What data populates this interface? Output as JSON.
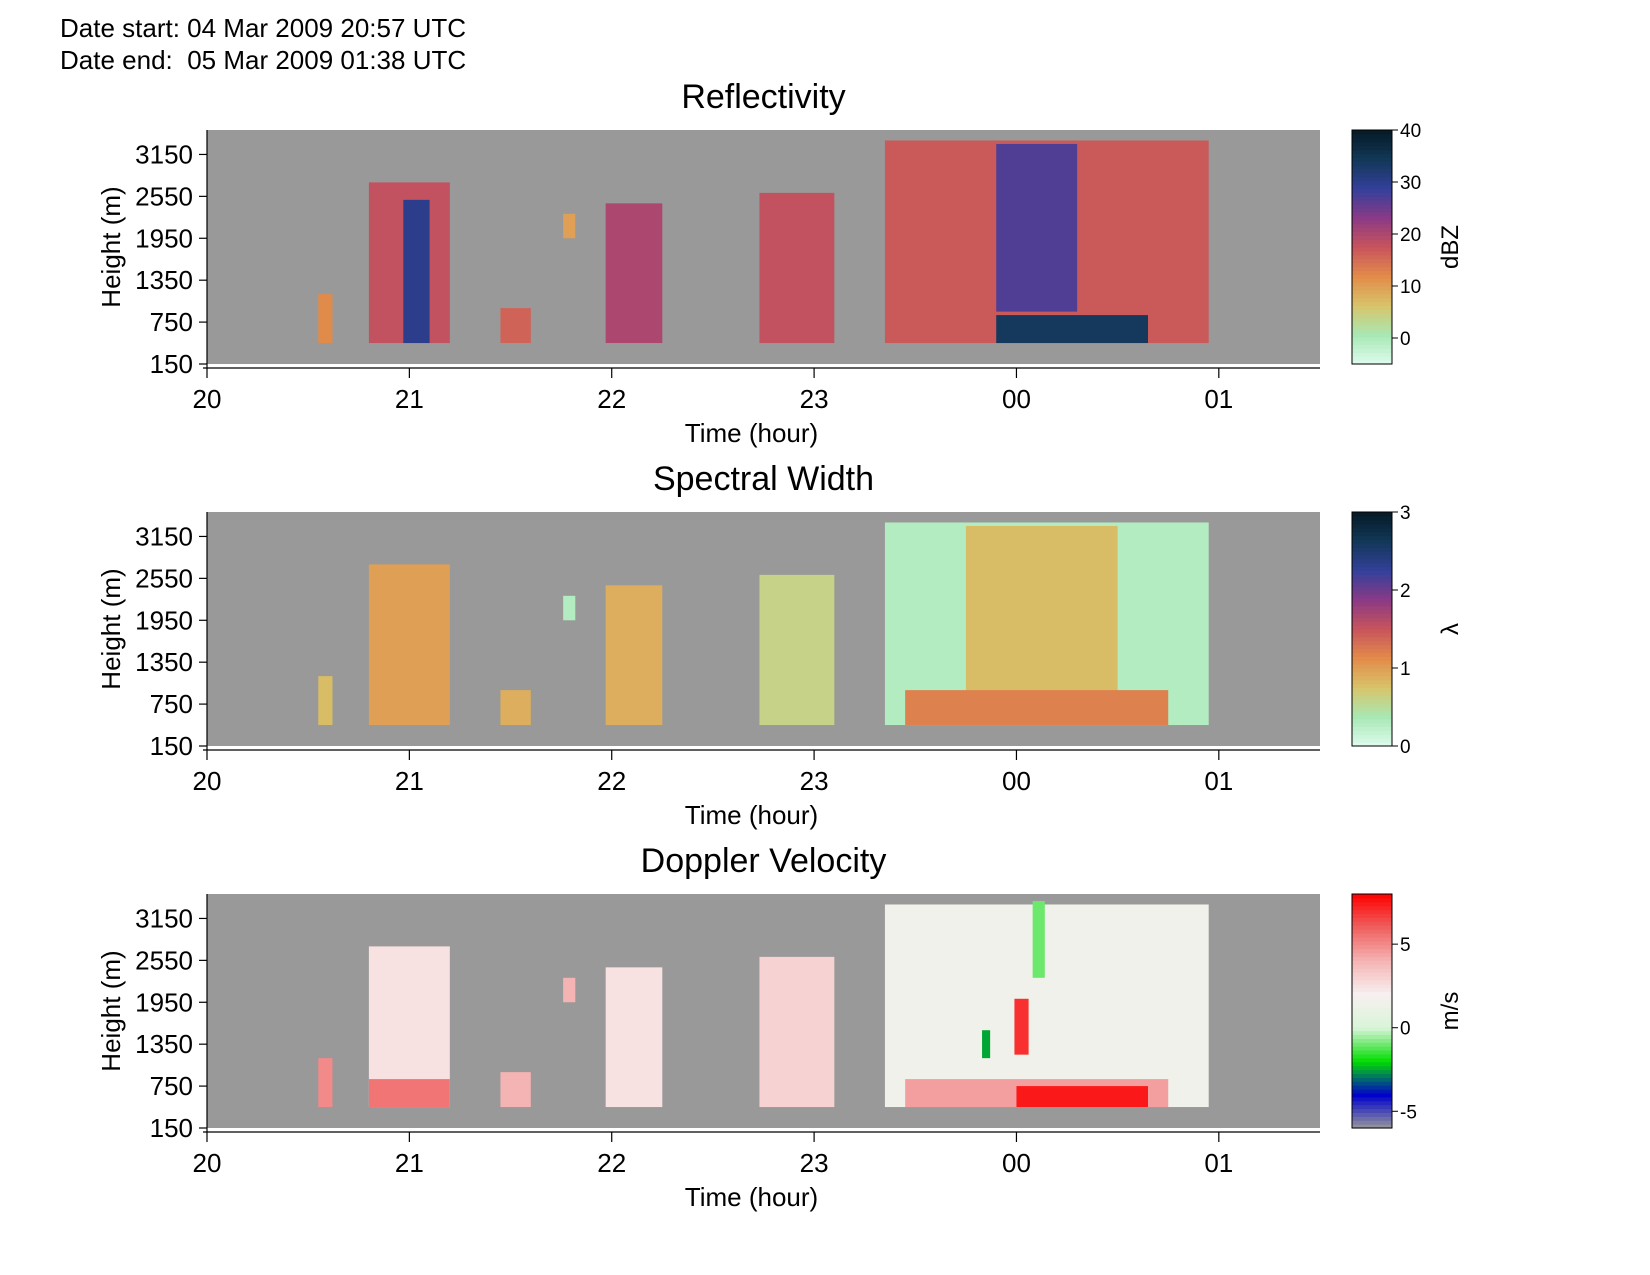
{
  "header": {
    "date_start": "Date start: 04 Mar 2009 20:57 UTC",
    "date_end": "Date end:  05 Mar 2009 01:38 UTC"
  },
  "chart_data": [
    {
      "type": "heatmap",
      "title": "Reflectivity",
      "xlabel": "Time (hour)",
      "ylabel": "Height (m)",
      "x_ticks": [
        "20",
        "21",
        "22",
        "23",
        "00",
        "01"
      ],
      "y_ticks": [
        "150",
        "750",
        "1350",
        "1950",
        "2550",
        "3150"
      ],
      "xlim": [
        20,
        25.5
      ],
      "ylim": [
        150,
        3500
      ],
      "colorbar": {
        "label": "dBZ",
        "ticks": [
          "0",
          "10",
          "20",
          "30",
          "40"
        ],
        "range": [
          -5,
          40
        ],
        "colors": [
          "#dffbef",
          "#a8e8b4",
          "#d8c46a",
          "#e28c4a",
          "#c8545c",
          "#8a3a86",
          "#34409a",
          "#123858",
          "#061a26"
        ]
      },
      "background": "#999999",
      "cells": [
        {
          "t0": 20.55,
          "t1": 20.62,
          "h0": 450,
          "h1": 1150,
          "value": 12
        },
        {
          "t0": 20.8,
          "t1": 21.2,
          "h0": 450,
          "h1": 2750,
          "value": 18
        },
        {
          "t0": 20.97,
          "t1": 21.1,
          "h0": 450,
          "h1": 2500,
          "value": 30
        },
        {
          "t0": 21.45,
          "t1": 21.6,
          "h0": 450,
          "h1": 950,
          "value": 16
        },
        {
          "t0": 21.76,
          "t1": 21.82,
          "h0": 1950,
          "h1": 2300,
          "value": 10
        },
        {
          "t0": 21.97,
          "t1": 22.25,
          "h0": 450,
          "h1": 2450,
          "value": 20
        },
        {
          "t0": 22.73,
          "t1": 23.1,
          "h0": 450,
          "h1": 2600,
          "value": 18
        },
        {
          "t0": 23.35,
          "t1": 24.95,
          "h0": 450,
          "h1": 3350,
          "value": 17
        },
        {
          "t0": 23.9,
          "t1": 24.3,
          "h0": 900,
          "h1": 3300,
          "value": 27
        },
        {
          "t0": 23.9,
          "t1": 24.65,
          "h0": 450,
          "h1": 850,
          "value": 34
        }
      ]
    },
    {
      "type": "heatmap",
      "title": "Spectral Width",
      "xlabel": "Time (hour)",
      "ylabel": "Height (m)",
      "x_ticks": [
        "20",
        "21",
        "22",
        "23",
        "00",
        "01"
      ],
      "y_ticks": [
        "150",
        "750",
        "1350",
        "1950",
        "2550",
        "3150"
      ],
      "xlim": [
        20,
        25.5
      ],
      "ylim": [
        150,
        3500
      ],
      "colorbar": {
        "label": "λ",
        "ticks": [
          "0",
          "1",
          "2",
          "3"
        ],
        "range": [
          0,
          3
        ],
        "colors": [
          "#dffbef",
          "#a8e8b4",
          "#d8c46a",
          "#e28c4a",
          "#c8545c",
          "#8a3a86",
          "#34409a",
          "#123858",
          "#061a26"
        ]
      },
      "background": "#999999",
      "cells": [
        {
          "t0": 20.55,
          "t1": 20.62,
          "h0": 450,
          "h1": 1150,
          "value": 0.8
        },
        {
          "t0": 20.8,
          "t1": 21.2,
          "h0": 450,
          "h1": 2750,
          "value": 1.0
        },
        {
          "t0": 21.45,
          "t1": 21.6,
          "h0": 450,
          "h1": 950,
          "value": 0.9
        },
        {
          "t0": 21.76,
          "t1": 21.82,
          "h0": 1950,
          "h1": 2300,
          "value": 0.3
        },
        {
          "t0": 21.97,
          "t1": 22.25,
          "h0": 450,
          "h1": 2450,
          "value": 0.9
        },
        {
          "t0": 22.73,
          "t1": 23.1,
          "h0": 450,
          "h1": 2600,
          "value": 0.6
        },
        {
          "t0": 23.35,
          "t1": 24.95,
          "h0": 450,
          "h1": 3350,
          "value": 0.3
        },
        {
          "t0": 23.75,
          "t1": 24.5,
          "h0": 450,
          "h1": 3300,
          "value": 0.8
        },
        {
          "t0": 23.45,
          "t1": 24.75,
          "h0": 450,
          "h1": 950,
          "value": 1.2
        }
      ]
    },
    {
      "type": "heatmap",
      "title": "Doppler Velocity",
      "xlabel": "Time (hour)",
      "ylabel": "Height (m)",
      "x_ticks": [
        "20",
        "21",
        "22",
        "23",
        "00",
        "01"
      ],
      "y_ticks": [
        "150",
        "750",
        "1350",
        "1950",
        "2550",
        "3150"
      ],
      "xlim": [
        20,
        25.5
      ],
      "ylim": [
        150,
        3500
      ],
      "colorbar": {
        "label": "m/s",
        "ticks": [
          "-5",
          "0",
          "5"
        ],
        "range": [
          -6,
          8
        ],
        "colors": [
          "#999999",
          "#0000cc",
          "#00dd00",
          "#d8f5d8",
          "#f8f0f0",
          "#f4b4b4",
          "#f06060",
          "#ff0000"
        ]
      },
      "background": "#999999",
      "cells": [
        {
          "t0": 20.55,
          "t1": 20.62,
          "h0": 450,
          "h1": 1150,
          "value": 5
        },
        {
          "t0": 20.8,
          "t1": 21.2,
          "h0": 450,
          "h1": 2750,
          "value": 2.5
        },
        {
          "t0": 20.8,
          "t1": 21.2,
          "h0": 450,
          "h1": 850,
          "value": 5.5
        },
        {
          "t0": 21.45,
          "t1": 21.6,
          "h0": 450,
          "h1": 950,
          "value": 4
        },
        {
          "t0": 21.76,
          "t1": 21.82,
          "h0": 1950,
          "h1": 2300,
          "value": 4
        },
        {
          "t0": 21.97,
          "t1": 22.25,
          "h0": 450,
          "h1": 2450,
          "value": 2.5
        },
        {
          "t0": 22.73,
          "t1": 23.1,
          "h0": 450,
          "h1": 2600,
          "value": 3
        },
        {
          "t0": 23.35,
          "t1": 24.95,
          "h0": 450,
          "h1": 3350,
          "value": 1.5
        },
        {
          "t0": 23.45,
          "t1": 24.75,
          "h0": 450,
          "h1": 850,
          "value": 4.5
        },
        {
          "t0": 24.0,
          "t1": 24.65,
          "h0": 450,
          "h1": 750,
          "value": 7.5
        },
        {
          "t0": 23.99,
          "t1": 24.06,
          "h0": 1200,
          "h1": 2000,
          "value": 7
        },
        {
          "t0": 23.83,
          "t1": 23.87,
          "h0": 1150,
          "h1": 1550,
          "value": -2.5
        },
        {
          "t0": 24.08,
          "t1": 24.14,
          "h0": 2300,
          "h1": 3400,
          "value": -1
        }
      ]
    }
  ]
}
